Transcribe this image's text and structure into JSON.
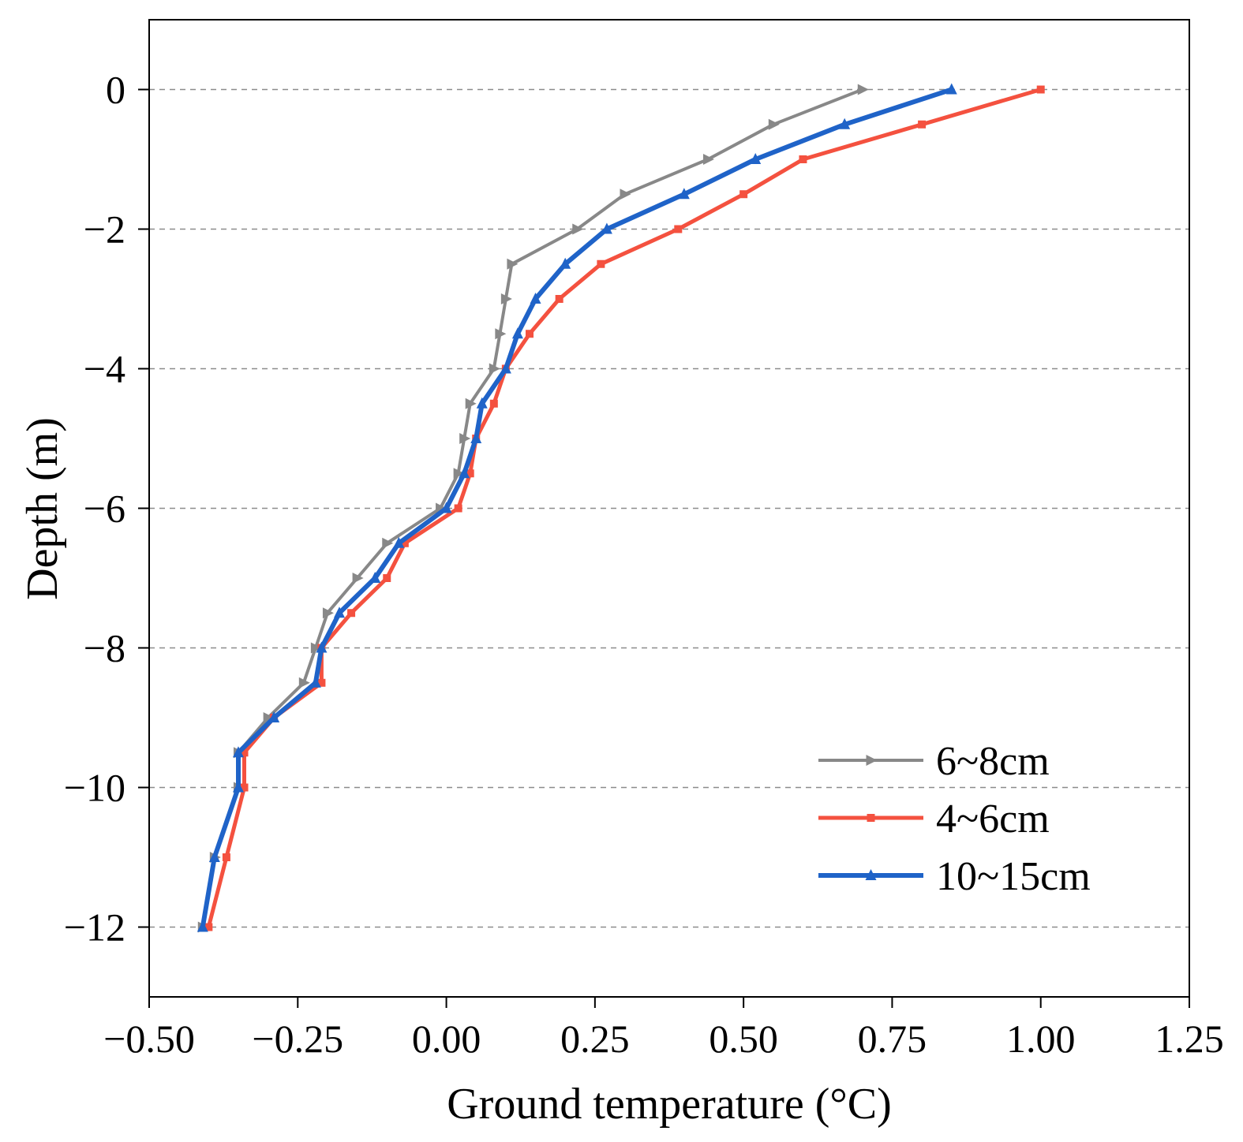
{
  "chart_data": {
    "type": "line",
    "title": "",
    "xlabel": "Ground temperature (°C)",
    "ylabel": "Depth (m)",
    "xlim": [
      -0.5,
      1.25
    ],
    "ylim": [
      -13,
      1
    ],
    "x_ticks": [
      -0.5,
      -0.25,
      0.0,
      0.25,
      0.5,
      0.75,
      1.0,
      1.25
    ],
    "x_tick_labels": [
      "−0.50",
      "−0.25",
      "0.00",
      "0.25",
      "0.50",
      "0.75",
      "1.00",
      "1.25"
    ],
    "y_ticks": [
      0,
      -2,
      -4,
      -6,
      -8,
      -10,
      -12
    ],
    "y_tick_labels": [
      "0",
      "−2",
      "−4",
      "−6",
      "−8",
      "−10",
      "−12"
    ],
    "grid": "horizontal dashed",
    "legend_position": "bottom-right",
    "series": [
      {
        "name": "6~8cm",
        "color": "#888888",
        "marker": "right-triangle",
        "points": [
          [
            0.7,
            0
          ],
          [
            0.55,
            -0.5
          ],
          [
            0.44,
            -1
          ],
          [
            0.3,
            -1.5
          ],
          [
            0.22,
            -2
          ],
          [
            0.11,
            -2.5
          ],
          [
            0.1,
            -3
          ],
          [
            0.09,
            -3.5
          ],
          [
            0.08,
            -4
          ],
          [
            0.04,
            -4.5
          ],
          [
            0.03,
            -5
          ],
          [
            0.02,
            -5.5
          ],
          [
            -0.01,
            -6
          ],
          [
            -0.1,
            -6.5
          ],
          [
            -0.15,
            -7
          ],
          [
            -0.2,
            -7.5
          ],
          [
            -0.22,
            -8
          ],
          [
            -0.24,
            -8.5
          ],
          [
            -0.3,
            -9
          ],
          [
            -0.35,
            -9.5
          ],
          [
            -0.35,
            -10
          ],
          [
            -0.39,
            -11
          ],
          [
            -0.41,
            -12
          ]
        ]
      },
      {
        "name": "4~6cm",
        "color": "#F4513F",
        "marker": "square",
        "points": [
          [
            1.0,
            0
          ],
          [
            0.8,
            -0.5
          ],
          [
            0.6,
            -1
          ],
          [
            0.5,
            -1.5
          ],
          [
            0.39,
            -2
          ],
          [
            0.26,
            -2.5
          ],
          [
            0.19,
            -3
          ],
          [
            0.14,
            -3.5
          ],
          [
            0.1,
            -4
          ],
          [
            0.08,
            -4.5
          ],
          [
            0.05,
            -5
          ],
          [
            0.04,
            -5.5
          ],
          [
            0.02,
            -6
          ],
          [
            -0.07,
            -6.5
          ],
          [
            -0.1,
            -7
          ],
          [
            -0.16,
            -7.5
          ],
          [
            -0.21,
            -8
          ],
          [
            -0.21,
            -8.5
          ],
          [
            -0.29,
            -9
          ],
          [
            -0.34,
            -9.5
          ],
          [
            -0.34,
            -10
          ],
          [
            -0.37,
            -11
          ],
          [
            -0.4,
            -12
          ]
        ]
      },
      {
        "name": "10~15cm",
        "color": "#1F63C8",
        "marker": "triangle",
        "points": [
          [
            0.85,
            0
          ],
          [
            0.67,
            -0.5
          ],
          [
            0.52,
            -1
          ],
          [
            0.4,
            -1.5
          ],
          [
            0.27,
            -2
          ],
          [
            0.2,
            -2.5
          ],
          [
            0.15,
            -3
          ],
          [
            0.12,
            -3.5
          ],
          [
            0.1,
            -4
          ],
          [
            0.06,
            -4.5
          ],
          [
            0.05,
            -5
          ],
          [
            0.03,
            -5.5
          ],
          [
            0.0,
            -6
          ],
          [
            -0.08,
            -6.5
          ],
          [
            -0.12,
            -7
          ],
          [
            -0.18,
            -7.5
          ],
          [
            -0.21,
            -8
          ],
          [
            -0.22,
            -8.5
          ],
          [
            -0.29,
            -9
          ],
          [
            -0.35,
            -9.5
          ],
          [
            -0.35,
            -10
          ],
          [
            -0.39,
            -11
          ],
          [
            -0.41,
            -12
          ]
        ]
      }
    ]
  }
}
